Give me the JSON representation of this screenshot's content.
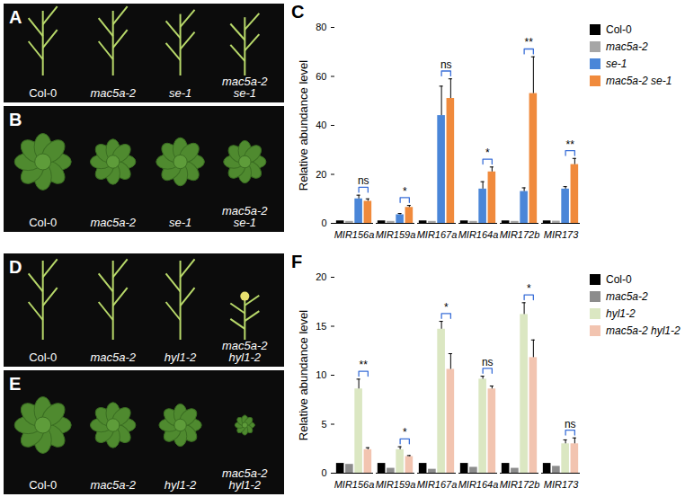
{
  "photos": [
    {
      "label": "A",
      "captions": [
        [
          "Col-0"
        ],
        [
          "mac5a-2"
        ],
        [
          "se-1"
        ],
        [
          "mac5a-2",
          "se-1"
        ]
      ]
    },
    {
      "label": "B",
      "captions": [
        [
          "Col-0"
        ],
        [
          "mac5a-2"
        ],
        [
          "se-1"
        ],
        [
          "mac5a-2",
          "se-1"
        ]
      ]
    },
    {
      "label": "D",
      "captions": [
        [
          "Col-0"
        ],
        [
          "mac5a-2"
        ],
        [
          "hyl1-2"
        ],
        [
          "mac5a-2",
          "hyl1-2"
        ]
      ]
    },
    {
      "label": "E",
      "captions": [
        [
          "Col-0"
        ],
        [
          "mac5a-2"
        ],
        [
          "hyl1-2"
        ],
        [
          "mac5a-2",
          "hyl1-2"
        ]
      ]
    }
  ],
  "chart_data": [
    {
      "type": "bar",
      "panel_label": "C",
      "y_label": "Relative abundance level",
      "categories": [
        "MIR156a",
        "MIR159a",
        "MIR167a",
        "MIR164a",
        "MIR172b",
        "MIR173"
      ],
      "series": [
        {
          "name": "Col-0",
          "color": "#000000",
          "values": [
            1,
            1,
            1,
            1,
            1,
            1
          ],
          "errors": [
            0,
            0,
            0,
            0,
            0,
            0
          ]
        },
        {
          "name": "mac5a-2",
          "color": "#a6a6a6",
          "values": [
            0.8,
            0.8,
            0.8,
            0.8,
            0.8,
            0.9
          ],
          "errors": [
            0,
            0,
            0,
            0,
            0,
            0
          ]
        },
        {
          "name": "se-1",
          "color": "#4a86d8",
          "values": [
            10,
            3.5,
            44,
            14,
            13,
            14
          ],
          "errors": [
            1.5,
            0.5,
            12,
            3,
            1.5,
            1
          ]
        },
        {
          "name": "mac5a-2 se-1",
          "color": "#f08a3c",
          "values": [
            9,
            6.5,
            51,
            21,
            53,
            24
          ],
          "errors": [
            1,
            0.8,
            8,
            2,
            15,
            2.5
          ]
        }
      ],
      "significance": [
        "ns",
        "*",
        "ns",
        "*",
        "**",
        "**"
      ],
      "ylim": [
        0,
        80
      ],
      "yticks": [
        0,
        20,
        40,
        60,
        80
      ],
      "legend": "right"
    },
    {
      "type": "bar",
      "panel_label": "F",
      "y_label": "Relative abundance level",
      "categories": [
        "MIR156a",
        "MIR159a",
        "MIR167a",
        "MIR164a",
        "MIR172b",
        "MIR173"
      ],
      "series": [
        {
          "name": "Col-0",
          "color": "#000000",
          "values": [
            1,
            1,
            1,
            1,
            1,
            1
          ],
          "errors": [
            0,
            0,
            0,
            0,
            0,
            0
          ]
        },
        {
          "name": "mac5a-2",
          "color": "#8c8c8c",
          "values": [
            0.9,
            0.5,
            0.4,
            0.6,
            0.5,
            0.7
          ],
          "errors": [
            0,
            0,
            0,
            0,
            0,
            0
          ]
        },
        {
          "name": "hyl1-2",
          "color": "#dbe7c2",
          "values": [
            8.6,
            2.4,
            14.7,
            9.6,
            16.2,
            3
          ],
          "errors": [
            1,
            0.3,
            0.8,
            0.3,
            1.2,
            0.4
          ]
        },
        {
          "name": "mac5a-2 hyl1-2",
          "color": "#f2c4b0",
          "values": [
            2.4,
            1.7,
            10.6,
            8.6,
            11.8,
            3
          ],
          "errors": [
            0.2,
            0.1,
            1.6,
            0.3,
            1.8,
            0.6
          ]
        }
      ],
      "significance": [
        "**",
        "*",
        "*",
        "ns",
        "*",
        "ns"
      ],
      "ylim": [
        0,
        20
      ],
      "yticks": [
        0,
        5,
        10,
        15,
        20
      ],
      "legend": "right"
    }
  ]
}
